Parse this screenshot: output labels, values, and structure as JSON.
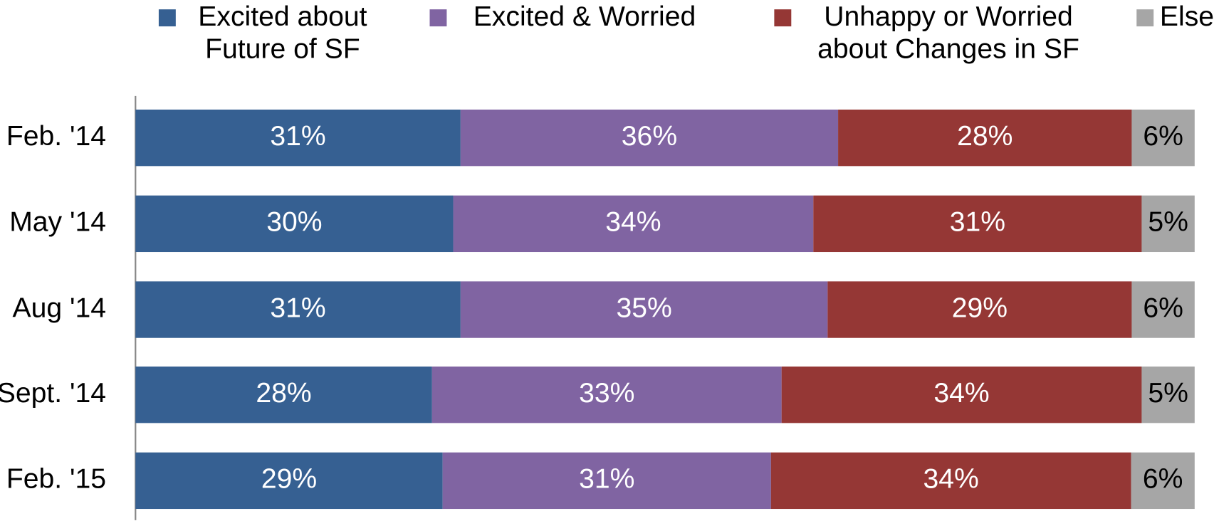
{
  "chart_data": {
    "type": "stacked_bar_horizontal",
    "categories": [
      "Feb. '14",
      "May '14",
      "Aug '14",
      "Sept. '14",
      "Feb. '15"
    ],
    "series": [
      {
        "name": "Excited about Future of SF",
        "color": "#366092",
        "values": [
          31,
          30,
          31,
          28,
          29
        ]
      },
      {
        "name": "Excited & Worried",
        "color": "#8064a2",
        "values": [
          36,
          34,
          35,
          33,
          31
        ]
      },
      {
        "name": "Unhappy or Worried about Changes in SF",
        "color": "#953735",
        "values": [
          28,
          31,
          29,
          34,
          34
        ]
      },
      {
        "name": "Else",
        "color": "#a6a6a6",
        "values": [
          6,
          5,
          6,
          5,
          6
        ]
      }
    ],
    "value_labels": [
      [
        "31%",
        "30%",
        "31%",
        "28%",
        "29%"
      ],
      [
        "36%",
        "34%",
        "35%",
        "33%",
        "31%"
      ],
      [
        "28%",
        "31%",
        "29%",
        "34%",
        "34%"
      ],
      [
        "6%",
        "5%",
        "6%",
        "5%",
        "6%"
      ]
    ],
    "label_colors": [
      "#ffffff",
      "#ffffff",
      "#ffffff",
      "#000000"
    ]
  }
}
